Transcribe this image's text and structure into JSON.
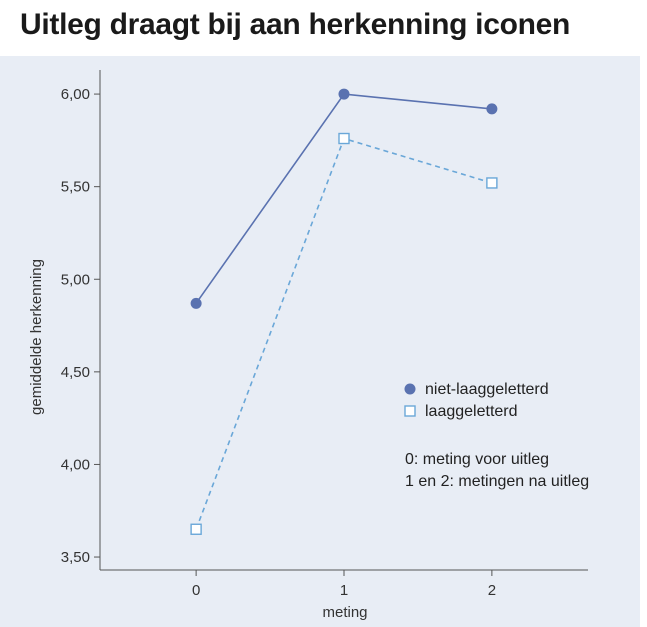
{
  "title": "Uitleg draagt bij aan herkenning iconen",
  "colors": {
    "background_panel": "#e8edf5",
    "series_solid": "#5a72b0",
    "series_dashed": "#6aa7d8",
    "axis": "#555555"
  },
  "chart_data": {
    "type": "line",
    "title": "Uitleg draagt bij aan herkenning iconen",
    "xlabel": "meting",
    "ylabel": "gemiddelde herkenning",
    "x": [
      0,
      1,
      2
    ],
    "x_tick_labels": [
      "0",
      "1",
      "2"
    ],
    "xlim": [
      -0.65,
      2.65
    ],
    "ylim": [
      3.43,
      6.13
    ],
    "y_ticks": [
      3.5,
      4.0,
      4.5,
      5.0,
      5.5,
      6.0
    ],
    "y_tick_labels": [
      "3,50",
      "4,00",
      "4,50",
      "5,00",
      "5,50",
      "6,00"
    ],
    "grid": false,
    "legend_position": "right",
    "series": [
      {
        "name": "niet-laaggeletterd",
        "values": [
          4.87,
          6.0,
          5.92
        ],
        "marker": "filled-circle",
        "line": "solid",
        "color": "#5a72b0"
      },
      {
        "name": "laaggeletterd",
        "values": [
          3.65,
          5.76,
          5.52
        ],
        "marker": "open-square",
        "line": "dashed",
        "color": "#6aa7d8"
      }
    ],
    "annotations": [
      "0: meting voor uitleg",
      "1 en 2: metingen na uitleg"
    ]
  }
}
